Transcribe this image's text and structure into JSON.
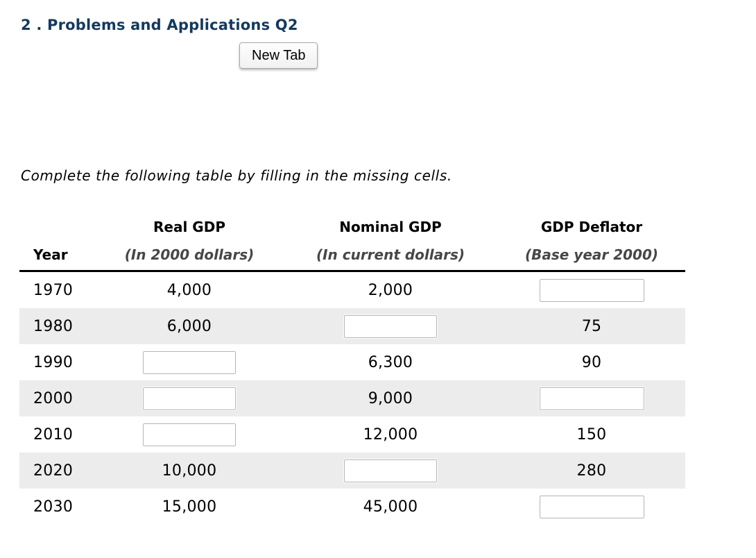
{
  "page": {
    "title": "2 . Problems and Applications Q2",
    "new_tab_label": "New Tab",
    "instruction": "Complete the following table by filling in the missing cells."
  },
  "colors": {
    "title_navy": "#15395e",
    "row_stripe": "#ececec",
    "header_subtext": "#474747",
    "input_border": "#b5b5b5"
  },
  "table": {
    "columns": [
      {
        "key": "year",
        "header": "",
        "subheader": "Year"
      },
      {
        "key": "real_gdp",
        "header": "Real GDP",
        "subheader": "(In 2000 dollars)"
      },
      {
        "key": "nominal_gdp",
        "header": "Nominal GDP",
        "subheader": "(In current dollars)"
      },
      {
        "key": "gdp_deflator",
        "header": "GDP Deflator",
        "subheader": "(Base year 2000)"
      }
    ],
    "rows": [
      {
        "year": "1970",
        "cells": [
          {
            "type": "text",
            "value": "4,000"
          },
          {
            "type": "text",
            "value": "2,000"
          },
          {
            "type": "input",
            "value": ""
          }
        ]
      },
      {
        "year": "1980",
        "cells": [
          {
            "type": "text",
            "value": "6,000"
          },
          {
            "type": "input",
            "value": ""
          },
          {
            "type": "text",
            "value": "75"
          }
        ]
      },
      {
        "year": "1990",
        "cells": [
          {
            "type": "input",
            "value": ""
          },
          {
            "type": "text",
            "value": "6,300"
          },
          {
            "type": "text",
            "value": "90"
          }
        ]
      },
      {
        "year": "2000",
        "cells": [
          {
            "type": "input",
            "value": ""
          },
          {
            "type": "text",
            "value": "9,000"
          },
          {
            "type": "input",
            "value": ""
          }
        ]
      },
      {
        "year": "2010",
        "cells": [
          {
            "type": "input",
            "value": ""
          },
          {
            "type": "text",
            "value": "12,000"
          },
          {
            "type": "text",
            "value": "150"
          }
        ]
      },
      {
        "year": "2020",
        "cells": [
          {
            "type": "text",
            "value": "10,000"
          },
          {
            "type": "input",
            "value": ""
          },
          {
            "type": "text",
            "value": "280"
          }
        ]
      },
      {
        "year": "2030",
        "cells": [
          {
            "type": "text",
            "value": "15,000"
          },
          {
            "type": "text",
            "value": "45,000"
          },
          {
            "type": "input",
            "value": ""
          }
        ]
      }
    ]
  }
}
